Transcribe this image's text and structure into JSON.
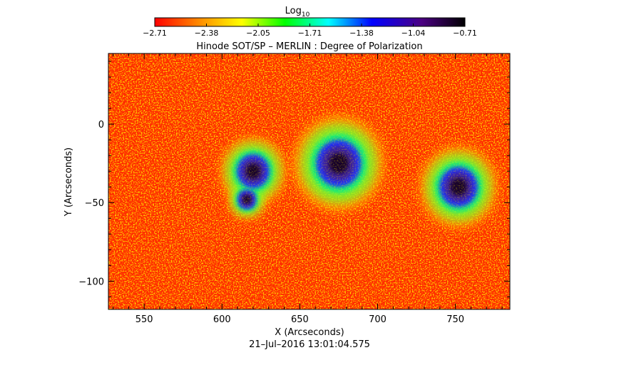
{
  "title": "Hinode SOT/SP – MERLIN : Degree of Polarization",
  "colorbar": {
    "label": "Log",
    "label_subscript": "10",
    "ticks": [
      "−2.71",
      "−2.38",
      "−2.05",
      "−1.71",
      "−1.38",
      "−1.04",
      "−0.71"
    ],
    "range": [
      -2.71,
      -0.71
    ],
    "colormap": [
      "#ff0000",
      "#ff8800",
      "#ffff00",
      "#00ff00",
      "#00ffff",
      "#0000ff",
      "#4b0082",
      "#000000"
    ]
  },
  "axes": {
    "xlabel": "X (Arcseconds)",
    "ylabel": "Y (Arcseconds)",
    "xrange": [
      527,
      785
    ],
    "yrange": [
      -118,
      45
    ],
    "xticks": [
      "550",
      "600",
      "650",
      "700",
      "750"
    ],
    "xtick_values": [
      550,
      600,
      650,
      700,
      750
    ],
    "yticks": [
      "0",
      "−50",
      "−100"
    ],
    "ytick_values": [
      0,
      -50,
      -100
    ]
  },
  "timestamp": "21–Jul–2016  13:01:04.575",
  "sunspots": [
    {
      "x": 620,
      "y": -30,
      "level": "dark"
    },
    {
      "x": 616,
      "y": -48,
      "level": "dark"
    },
    {
      "x": 675,
      "y": -25,
      "level": "dark"
    },
    {
      "x": 752,
      "y": -40,
      "level": "dark"
    }
  ]
}
